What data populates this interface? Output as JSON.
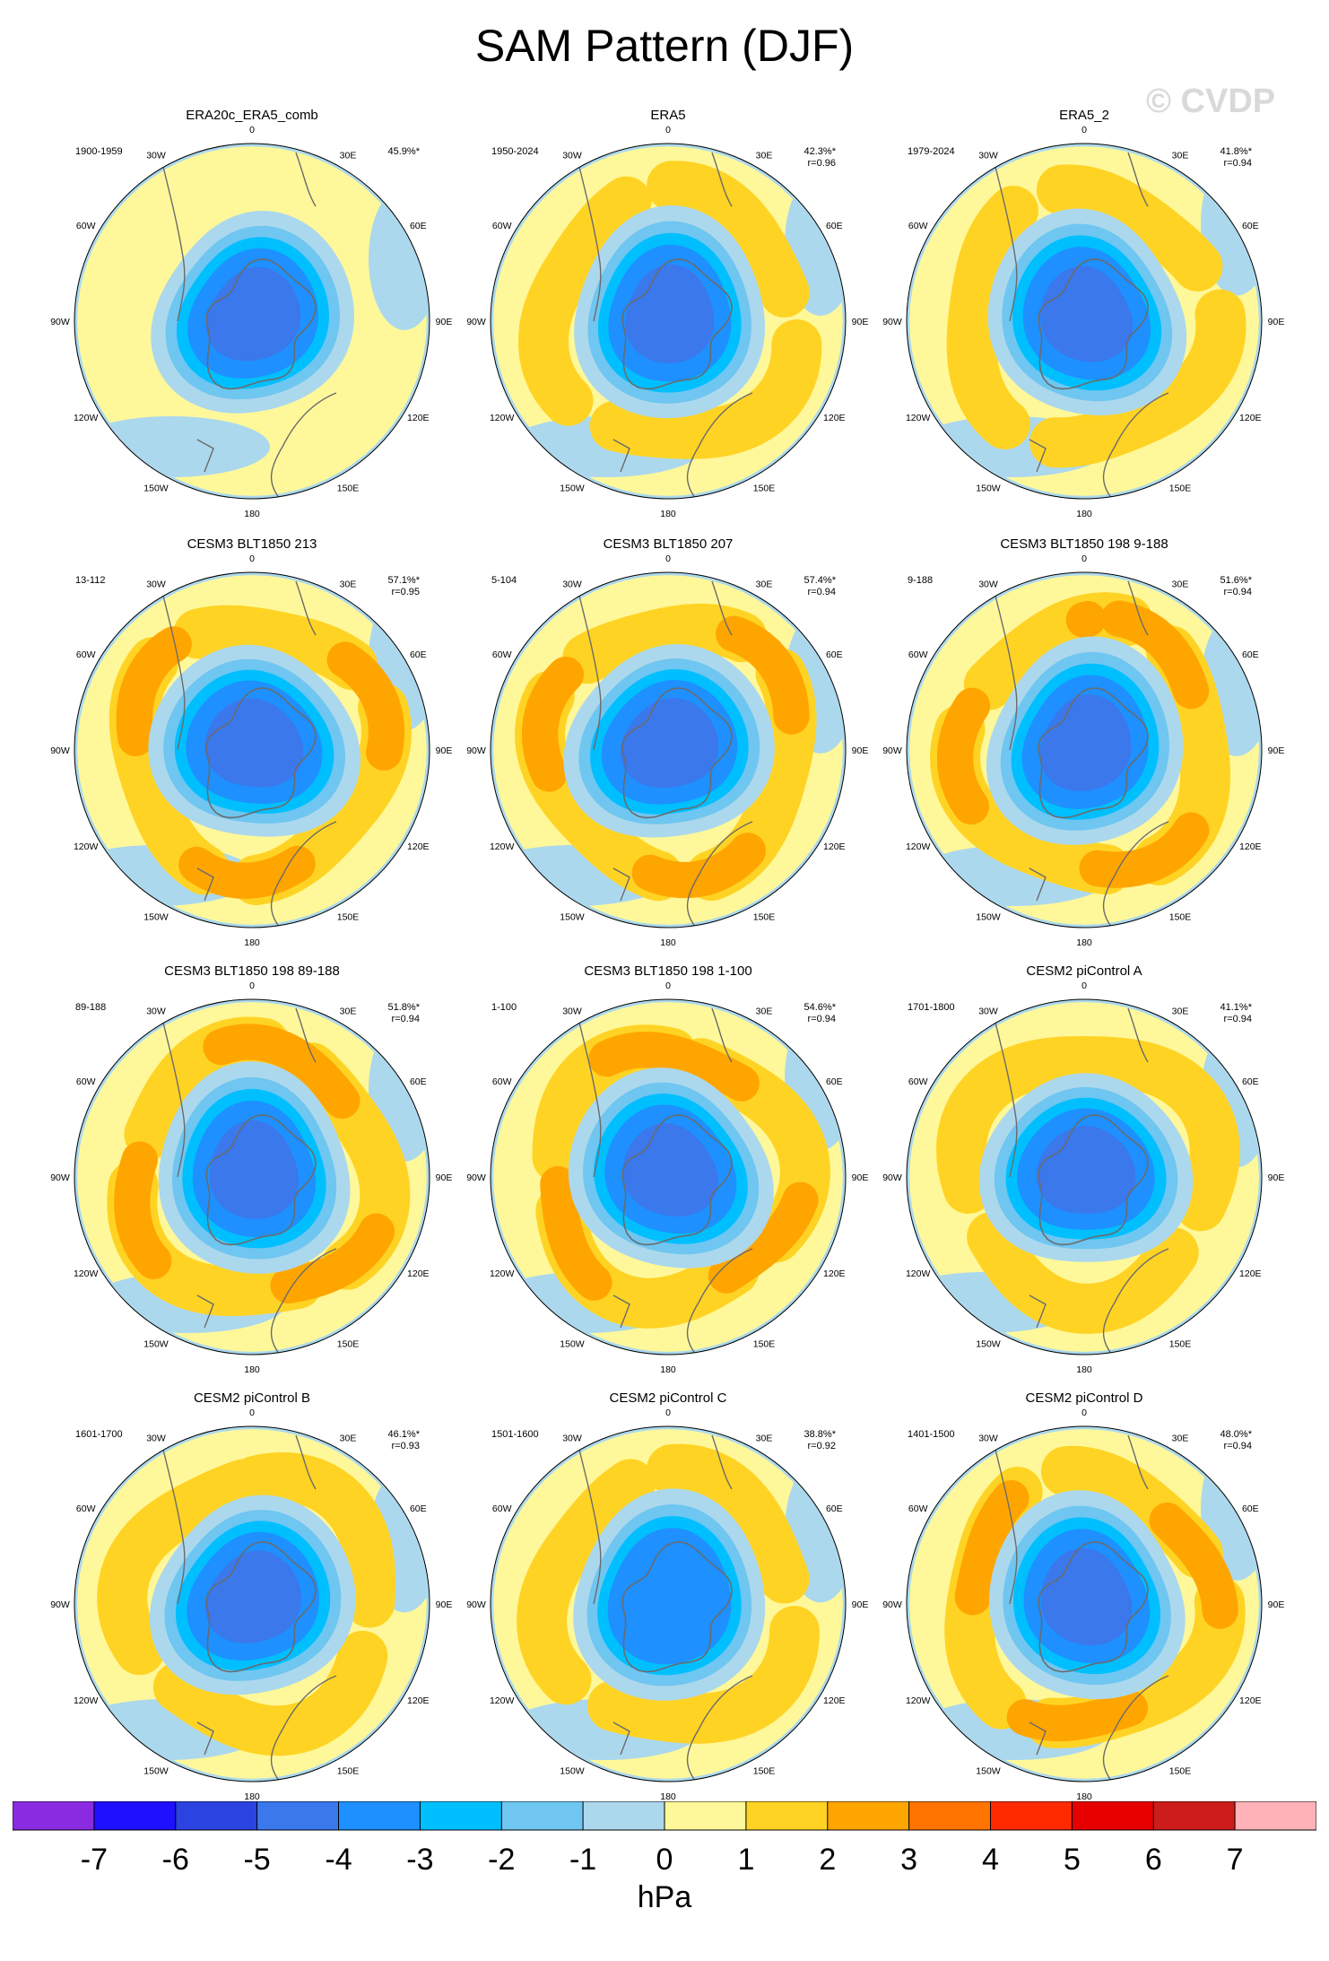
{
  "title": "SAM Pattern (DJF)",
  "watermark": "© CVDP",
  "colors": {
    "background": "#ffffff",
    "land_line": "#6b6b6b",
    "frame": "#000000"
  },
  "chart_data": {
    "type": "heatmap",
    "projection": "south-polar-stereographic",
    "variable": "SAM sea level pressure regression pattern",
    "units": "hPa",
    "lon_labels": [
      "0",
      "30E",
      "60E",
      "90E",
      "120E",
      "150E",
      "180",
      "150W",
      "120W",
      "90W",
      "60W",
      "30W"
    ],
    "colorbar": {
      "label": "hPa",
      "ticks": [
        "-7",
        "-6",
        "-5",
        "-4",
        "-3",
        "-2",
        "-1",
        "0",
        "1",
        "2",
        "3",
        "4",
        "5",
        "6",
        "7"
      ],
      "levels": [
        -7,
        -6,
        -5,
        -4,
        -3,
        -2,
        -1,
        0,
        1,
        2,
        3,
        4,
        5,
        6,
        7
      ],
      "colors": [
        "#8a2be2",
        "#1f10ff",
        "#2b43e0",
        "#3a78ec",
        "#1e90ff",
        "#00bfff",
        "#6fc6f0",
        "#acd8ed",
        "#fff89a",
        "#ffd324",
        "#ffa500",
        "#ff7400",
        "#ff2a00",
        "#e60000",
        "#cc1c1c",
        "#ffb3b8"
      ]
    },
    "panels": [
      {
        "name": "ERA20c_ERA5_comb",
        "period": "1900-1959",
        "pct_variance": "45.9%*",
        "pattern_corr": "",
        "core_min": -4.6,
        "ring_peak": 0.6
      },
      {
        "name": "ERA5",
        "period": "1950-2024",
        "pct_variance": "42.3%*",
        "pattern_corr": "r=0.96",
        "core_min": -4.1,
        "ring_peak": 1.4
      },
      {
        "name": "ERA5_2",
        "period": "1979-2024",
        "pct_variance": "41.8%*",
        "pattern_corr": "r=0.94",
        "core_min": -4.1,
        "ring_peak": 1.5
      },
      {
        "name": "CESM3 BLT1850 213",
        "period": "13-112",
        "pct_variance": "57.1%*",
        "pattern_corr": "r=0.95",
        "core_min": -4.5,
        "ring_peak": 2.4
      },
      {
        "name": "CESM3 BLT1850 207",
        "period": "5-104",
        "pct_variance": "57.4%*",
        "pattern_corr": "r=0.94",
        "core_min": -4.6,
        "ring_peak": 2.3
      },
      {
        "name": "CESM3 BLT1850 198 9-188",
        "period": "9-188",
        "pct_variance": "51.6%*",
        "pattern_corr": "r=0.94",
        "core_min": -4.2,
        "ring_peak": 2.2
      },
      {
        "name": "CESM3 BLT1850 198 89-188",
        "period": "89-188",
        "pct_variance": "51.8%*",
        "pattern_corr": "r=0.94",
        "core_min": -4.3,
        "ring_peak": 2.2
      },
      {
        "name": "CESM3 BLT1850 198 1-100",
        "period": "1-100",
        "pct_variance": "54.6%*",
        "pattern_corr": "r=0.94",
        "core_min": -4.4,
        "ring_peak": 2.3
      },
      {
        "name": "CESM2 piControl A",
        "period": "1701-1800",
        "pct_variance": "41.1%*",
        "pattern_corr": "r=0.94",
        "core_min": -4.2,
        "ring_peak": 1.8
      },
      {
        "name": "CESM2 piControl B",
        "period": "1601-1700",
        "pct_variance": "46.1%*",
        "pattern_corr": "r=0.93",
        "core_min": -4.4,
        "ring_peak": 1.8
      },
      {
        "name": "CESM2 piControl C",
        "period": "1501-1600",
        "pct_variance": "38.8%*",
        "pattern_corr": "r=0.92",
        "core_min": -3.9,
        "ring_peak": 1.5
      },
      {
        "name": "CESM2 piControl D",
        "period": "1401-1500",
        "pct_variance": "48.0%*",
        "pattern_corr": "r=0.94",
        "core_min": -4.4,
        "ring_peak": 2.1
      }
    ]
  }
}
